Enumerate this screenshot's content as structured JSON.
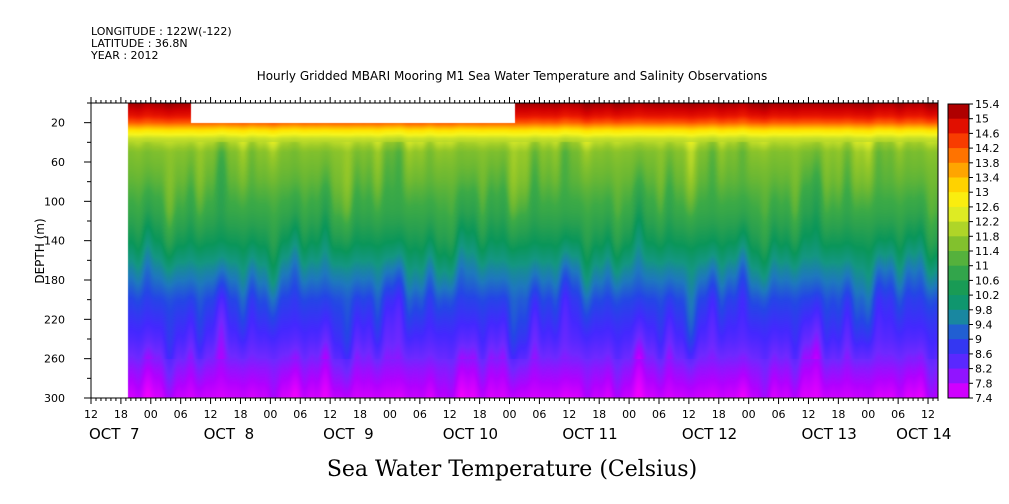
{
  "header": {
    "longitude": "LONGITUDE : 122W(-122)",
    "latitude": "LATITUDE : 36.8N",
    "year": "YEAR : 2012"
  },
  "chart_data": {
    "type": "heatmap",
    "title": "Hourly Gridded MBARI Mooring M1 Sea Water Temperature and Salinity Observations",
    "xlabel": "",
    "ylabel": "DEPTH (m)",
    "caption": "Sea Water Temperature (Celsius)",
    "y_inverted": true,
    "ylim": [
      0,
      300
    ],
    "y_ticks": [
      20,
      60,
      100,
      140,
      180,
      220,
      260,
      300
    ],
    "x_range_hours": [
      0,
      170
    ],
    "x_ticks": [
      {
        "h": 0,
        "label": "12"
      },
      {
        "h": 6,
        "label": "18"
      },
      {
        "h": 12,
        "label": "00"
      },
      {
        "h": 18,
        "label": "06"
      },
      {
        "h": 24,
        "label": "12"
      },
      {
        "h": 30,
        "label": "18"
      },
      {
        "h": 36,
        "label": "00"
      },
      {
        "h": 42,
        "label": "06"
      },
      {
        "h": 48,
        "label": "12"
      },
      {
        "h": 54,
        "label": "18"
      },
      {
        "h": 60,
        "label": "00"
      },
      {
        "h": 66,
        "label": "06"
      },
      {
        "h": 72,
        "label": "12"
      },
      {
        "h": 78,
        "label": "18"
      },
      {
        "h": 84,
        "label": "00"
      },
      {
        "h": 90,
        "label": "06"
      },
      {
        "h": 96,
        "label": "12"
      },
      {
        "h": 102,
        "label": "18"
      },
      {
        "h": 108,
        "label": "00"
      },
      {
        "h": 114,
        "label": "06"
      },
      {
        "h": 120,
        "label": "12"
      },
      {
        "h": 126,
        "label": "18"
      },
      {
        "h": 132,
        "label": "00"
      },
      {
        "h": 138,
        "label": "06"
      },
      {
        "h": 144,
        "label": "12"
      },
      {
        "h": 150,
        "label": "18"
      },
      {
        "h": 156,
        "label": "00"
      },
      {
        "h": 162,
        "label": "06"
      },
      {
        "h": 168,
        "label": "12"
      }
    ],
    "day_labels": [
      {
        "h": 0,
        "label": "OCT  7"
      },
      {
        "h": 23,
        "label": "OCT  8"
      },
      {
        "h": 47,
        "label": "OCT  9"
      },
      {
        "h": 71,
        "label": "OCT 10"
      },
      {
        "h": 95,
        "label": "OCT 11"
      },
      {
        "h": 119,
        "label": "OCT 12"
      },
      {
        "h": 143,
        "label": "OCT 13"
      },
      {
        "h": 162,
        "label": "OCT 14"
      }
    ],
    "data_start_hour": 7.5,
    "no_data": [
      {
        "x": [
          0,
          7.5
        ],
        "depth": [
          0,
          300
        ]
      },
      {
        "x": [
          20,
          85
        ],
        "depth": [
          0,
          20
        ]
      }
    ],
    "colorbar": {
      "labels": [
        "15.4",
        "15",
        "14.6",
        "14.2",
        "13.8",
        "13.4",
        "13",
        "12.6",
        "12.2",
        "11.8",
        "11.4",
        "11",
        "10.6",
        "10.2",
        "9.8",
        "9.4",
        "9",
        "8.6",
        "8.2",
        "7.8",
        "7.4"
      ],
      "min": 7.4,
      "max": 15.4
    },
    "profile": [
      {
        "depth": 0,
        "temp": 15.3
      },
      {
        "depth": 12,
        "temp": 14.8
      },
      {
        "depth": 20,
        "temp": 14.2
      },
      {
        "depth": 28,
        "temp": 13.0
      },
      {
        "depth": 36,
        "temp": 12.2
      },
      {
        "depth": 50,
        "temp": 11.6
      },
      {
        "depth": 80,
        "temp": 11.3
      },
      {
        "depth": 110,
        "temp": 10.9
      },
      {
        "depth": 140,
        "temp": 10.3
      },
      {
        "depth": 170,
        "temp": 9.6
      },
      {
        "depth": 200,
        "temp": 9.0
      },
      {
        "depth": 240,
        "temp": 8.5
      },
      {
        "depth": 270,
        "temp": 8.0
      },
      {
        "depth": 300,
        "temp": 7.6
      }
    ]
  }
}
